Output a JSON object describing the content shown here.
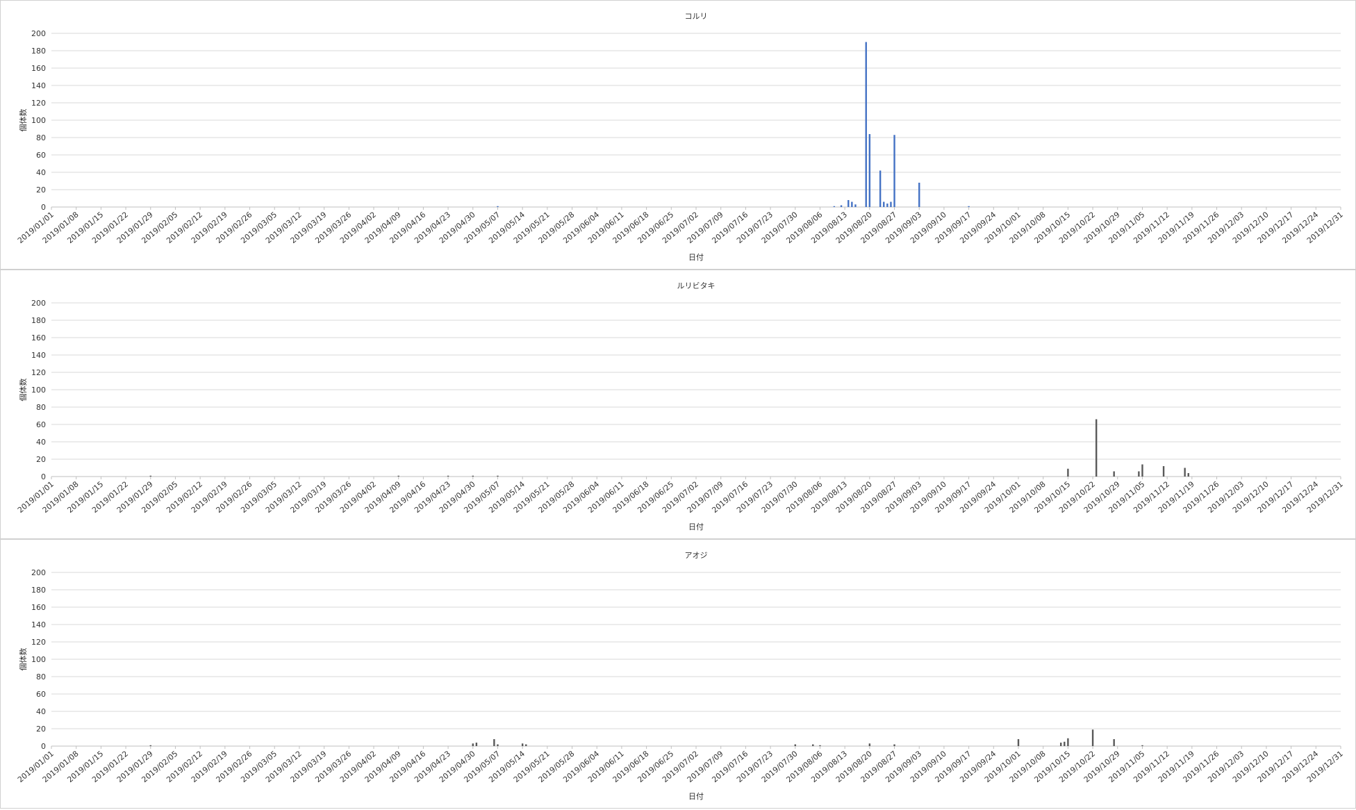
{
  "chart_data": [
    {
      "type": "bar",
      "title": "コルリ",
      "xlabel": "日付",
      "ylabel": "個体数",
      "ylim": [
        0,
        200
      ],
      "yticks": [
        0,
        20,
        40,
        60,
        80,
        100,
        120,
        140,
        160,
        180,
        200
      ],
      "grid": true,
      "x_range": [
        "2019/01/01",
        "2019/12/31"
      ],
      "x_tick_labels": [
        "2019/01/01",
        "2019/01/08",
        "2019/01/15",
        "2019/01/22",
        "2019/01/29",
        "2019/02/05",
        "2019/02/12",
        "2019/02/19",
        "2019/02/26",
        "2019/03/05",
        "2019/03/12",
        "2019/03/19",
        "2019/03/26",
        "2019/04/02",
        "2019/04/09",
        "2019/04/16",
        "2019/04/23",
        "2019/04/30",
        "2019/05/07",
        "2019/05/14",
        "2019/05/21",
        "2019/05/28",
        "2019/06/04",
        "2019/06/11",
        "2019/06/18",
        "2019/06/25",
        "2019/07/02",
        "2019/07/09",
        "2019/07/16",
        "2019/07/23",
        "2019/07/30",
        "2019/08/06",
        "2019/08/13",
        "2019/08/20",
        "2019/08/27",
        "2019/09/03",
        "2019/09/10",
        "2019/09/17",
        "2019/09/24",
        "2019/10/01",
        "2019/10/08",
        "2019/10/15",
        "2019/10/22",
        "2019/10/29",
        "2019/11/05",
        "2019/11/12",
        "2019/11/19",
        "2019/11/26",
        "2019/12/03",
        "2019/12/10",
        "2019/12/17",
        "2019/12/24",
        "2019/12/31"
      ],
      "color": "#4472C4",
      "points": [
        {
          "x": "2019/05/07",
          "y": 1
        },
        {
          "x": "2019/08/10",
          "y": 1
        },
        {
          "x": "2019/08/12",
          "y": 2
        },
        {
          "x": "2019/08/14",
          "y": 8
        },
        {
          "x": "2019/08/15",
          "y": 6
        },
        {
          "x": "2019/08/16",
          "y": 3
        },
        {
          "x": "2019/08/19",
          "y": 190
        },
        {
          "x": "2019/08/20",
          "y": 84
        },
        {
          "x": "2019/08/23",
          "y": 42
        },
        {
          "x": "2019/08/24",
          "y": 6
        },
        {
          "x": "2019/08/25",
          "y": 4
        },
        {
          "x": "2019/08/26",
          "y": 6
        },
        {
          "x": "2019/08/27",
          "y": 83
        },
        {
          "x": "2019/09/03",
          "y": 28
        },
        {
          "x": "2019/09/17",
          "y": 1
        }
      ]
    },
    {
      "type": "bar",
      "title": "ルリビタキ",
      "xlabel": "日付",
      "ylabel": "個体数",
      "ylim": [
        0,
        200
      ],
      "yticks": [
        0,
        20,
        40,
        60,
        80,
        100,
        120,
        140,
        160,
        180,
        200
      ],
      "grid": true,
      "x_range": [
        "2019/01/01",
        "2019/12/31"
      ],
      "x_tick_labels": [
        "2019/01/01",
        "2019/01/08",
        "2019/01/15",
        "2019/01/22",
        "2019/01/29",
        "2019/02/05",
        "2019/02/12",
        "2019/02/19",
        "2019/02/26",
        "2019/03/05",
        "2019/03/12",
        "2019/03/19",
        "2019/03/26",
        "2019/04/02",
        "2019/04/09",
        "2019/04/16",
        "2019/04/23",
        "2019/04/30",
        "2019/05/07",
        "2019/05/14",
        "2019/05/21",
        "2019/05/28",
        "2019/06/04",
        "2019/06/11",
        "2019/06/18",
        "2019/06/25",
        "2019/07/02",
        "2019/07/09",
        "2019/07/16",
        "2019/07/23",
        "2019/07/30",
        "2019/08/06",
        "2019/08/13",
        "2019/08/20",
        "2019/08/27",
        "2019/09/03",
        "2019/09/10",
        "2019/09/17",
        "2019/09/24",
        "2019/10/01",
        "2019/10/08",
        "2019/10/15",
        "2019/10/22",
        "2019/10/29",
        "2019/11/05",
        "2019/11/12",
        "2019/11/19",
        "2019/11/26",
        "2019/12/03",
        "2019/12/10",
        "2019/12/17",
        "2019/12/24",
        "2019/12/31"
      ],
      "color": "#595959",
      "points": [
        {
          "x": "2019/01/29",
          "y": 1
        },
        {
          "x": "2019/04/09",
          "y": 1
        },
        {
          "x": "2019/04/23",
          "y": 1
        },
        {
          "x": "2019/04/30",
          "y": 1
        },
        {
          "x": "2019/05/07",
          "y": 1
        },
        {
          "x": "2019/10/15",
          "y": 9
        },
        {
          "x": "2019/10/23",
          "y": 66
        },
        {
          "x": "2019/10/28",
          "y": 6
        },
        {
          "x": "2019/11/04",
          "y": 6
        },
        {
          "x": "2019/11/05",
          "y": 14
        },
        {
          "x": "2019/11/11",
          "y": 12
        },
        {
          "x": "2019/11/17",
          "y": 10
        },
        {
          "x": "2019/11/18",
          "y": 4
        }
      ]
    },
    {
      "type": "bar",
      "title": "アオジ",
      "xlabel": "日付",
      "ylabel": "個体数",
      "ylim": [
        0,
        200
      ],
      "yticks": [
        0,
        20,
        40,
        60,
        80,
        100,
        120,
        140,
        160,
        180,
        200
      ],
      "grid": true,
      "x_range": [
        "2019/01/01",
        "2019/12/31"
      ],
      "x_tick_labels": [
        "2019/01/01",
        "2019/01/08",
        "2019/01/15",
        "2019/01/22",
        "2019/01/29",
        "2019/02/05",
        "2019/02/12",
        "2019/02/19",
        "2019/02/26",
        "2019/03/05",
        "2019/03/12",
        "2019/03/19",
        "2019/03/26",
        "2019/04/02",
        "2019/04/09",
        "2019/04/16",
        "2019/04/23",
        "2019/04/30",
        "2019/05/07",
        "2019/05/14",
        "2019/05/21",
        "2019/05/28",
        "2019/06/04",
        "2019/06/11",
        "2019/06/18",
        "2019/06/25",
        "2019/07/02",
        "2019/07/09",
        "2019/07/16",
        "2019/07/23",
        "2019/07/30",
        "2019/08/06",
        "2019/08/13",
        "2019/08/20",
        "2019/08/27",
        "2019/09/03",
        "2019/09/10",
        "2019/09/17",
        "2019/09/24",
        "2019/10/01",
        "2019/10/08",
        "2019/10/15",
        "2019/10/22",
        "2019/10/29",
        "2019/11/05",
        "2019/11/12",
        "2019/11/19",
        "2019/11/26",
        "2019/12/03",
        "2019/12/10",
        "2019/12/17",
        "2019/12/24",
        "2019/12/31"
      ],
      "color": "#595959",
      "points": [
        {
          "x": "2019/01/29",
          "y": 1
        },
        {
          "x": "2019/04/30",
          "y": 3
        },
        {
          "x": "2019/05/01",
          "y": 4
        },
        {
          "x": "2019/05/06",
          "y": 8
        },
        {
          "x": "2019/05/07",
          "y": 2
        },
        {
          "x": "2019/05/14",
          "y": 3
        },
        {
          "x": "2019/05/15",
          "y": 2
        },
        {
          "x": "2019/07/30",
          "y": 2
        },
        {
          "x": "2019/08/04",
          "y": 2
        },
        {
          "x": "2019/08/06",
          "y": 1
        },
        {
          "x": "2019/08/20",
          "y": 3
        },
        {
          "x": "2019/08/27",
          "y": 2
        },
        {
          "x": "2019/10/01",
          "y": 8
        },
        {
          "x": "2019/10/13",
          "y": 4
        },
        {
          "x": "2019/10/14",
          "y": 5
        },
        {
          "x": "2019/10/15",
          "y": 9
        },
        {
          "x": "2019/10/22",
          "y": 19
        },
        {
          "x": "2019/10/28",
          "y": 8
        },
        {
          "x": "2019/11/05",
          "y": 1
        }
      ]
    }
  ]
}
